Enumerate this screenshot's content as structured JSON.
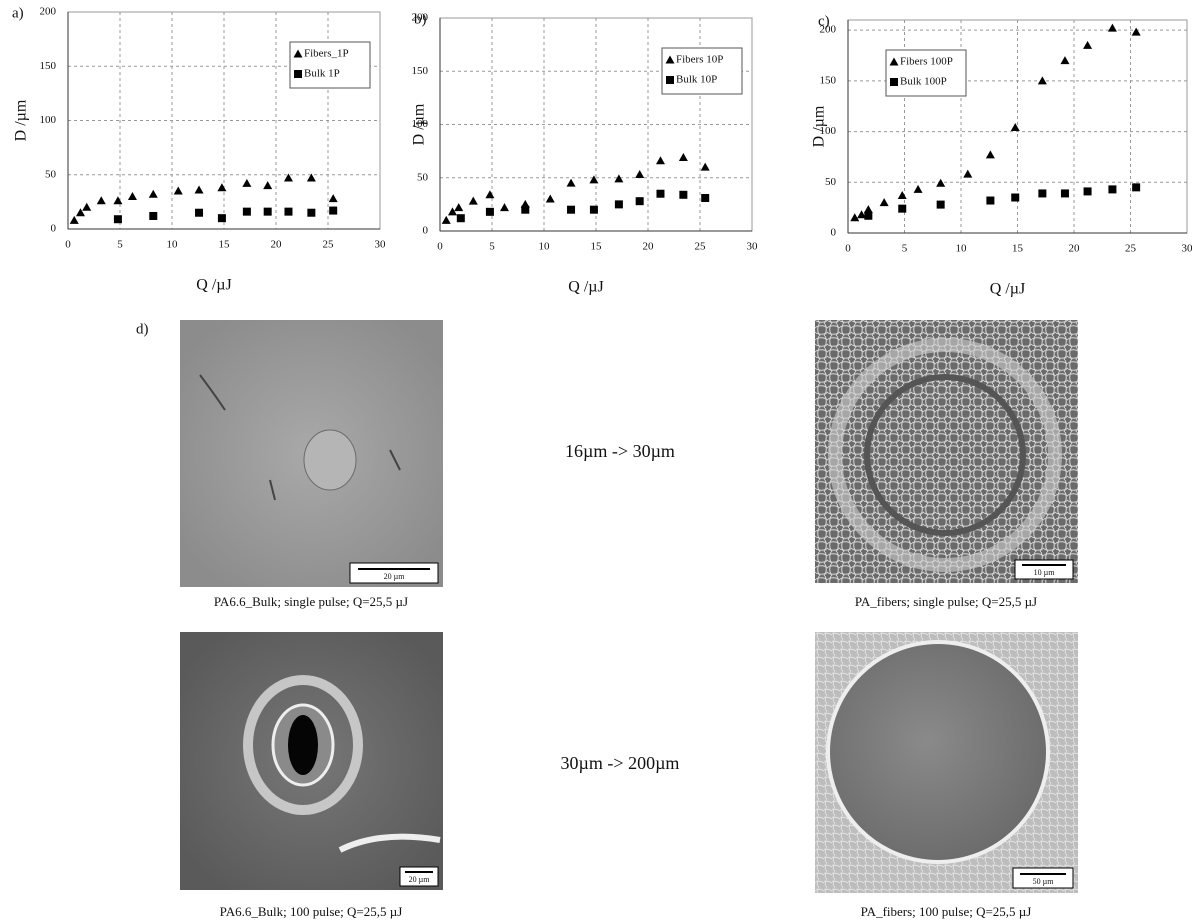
{
  "chart_data": [
    {
      "type": "scatter",
      "panel_label": "a)",
      "xlabel": "Q /µJ",
      "ylabel": "D /µm",
      "xlim": [
        0,
        30
      ],
      "xticks": [
        0,
        5,
        10,
        15,
        20,
        25,
        30
      ],
      "ylim": [
        0,
        200
      ],
      "yticks": [
        0,
        50,
        100,
        150,
        200
      ],
      "grid": true,
      "legend": "upper right",
      "series": [
        {
          "name": "Fibers_1P",
          "marker": "triangle",
          "color": "#000000",
          "x": [
            0.6,
            1.2,
            1.8,
            3.2,
            4.8,
            6.2,
            8.2,
            10.6,
            12.6,
            14.8,
            17.2,
            19.2,
            21.2,
            23.4,
            25.5
          ],
          "values": [
            8,
            15,
            20,
            26,
            26,
            30,
            32,
            35,
            36,
            38,
            42,
            40,
            47,
            47,
            28
          ]
        },
        {
          "name": "Bulk 1P",
          "marker": "square",
          "color": "#000000",
          "x": [
            4.8,
            8.2,
            12.6,
            14.8,
            17.2,
            19.2,
            21.2,
            23.4,
            25.5
          ],
          "values": [
            9,
            12,
            15,
            10,
            16,
            16,
            16,
            15,
            17
          ]
        }
      ]
    },
    {
      "type": "scatter",
      "panel_label": "b)",
      "xlabel": "Q /µJ",
      "ylabel": "D /µm",
      "xlim": [
        0,
        30
      ],
      "xticks": [
        0,
        5,
        10,
        15,
        20,
        25,
        30
      ],
      "ylim": [
        0,
        200
      ],
      "yticks": [
        0,
        50,
        100,
        150,
        200
      ],
      "grid": true,
      "legend": "upper right",
      "series": [
        {
          "name": "Fibers 10P",
          "marker": "triangle",
          "color": "#000000",
          "x": [
            0.6,
            1.2,
            1.8,
            3.2,
            4.8,
            6.2,
            8.2,
            10.6,
            12.6,
            14.8,
            17.2,
            19.2,
            21.2,
            23.4,
            25.5
          ],
          "values": [
            10,
            18,
            22,
            28,
            34,
            22,
            25,
            30,
            45,
            48,
            49,
            53,
            66,
            69,
            60
          ]
        },
        {
          "name": "Bulk 10P",
          "marker": "square",
          "color": "#000000",
          "x": [
            2,
            4.8,
            8.2,
            12.6,
            14.8,
            17.2,
            19.2,
            21.2,
            23.4,
            25.5
          ],
          "values": [
            12,
            18,
            20,
            20,
            20,
            25,
            28,
            35,
            34,
            31
          ]
        }
      ]
    },
    {
      "type": "scatter",
      "panel_label": "c)",
      "xlabel": "Q /µJ",
      "ylabel": "D /µm",
      "xlim": [
        0,
        30
      ],
      "xticks": [
        0,
        5,
        10,
        15,
        20,
        25,
        30
      ],
      "ylim": [
        0,
        210
      ],
      "yticks": [
        0,
        50,
        100,
        150,
        200
      ],
      "grid": true,
      "legend": "upper left",
      "series": [
        {
          "name": "Fibers 100P",
          "marker": "triangle",
          "color": "#000000",
          "x": [
            0.6,
            1.2,
            1.8,
            3.2,
            4.8,
            6.2,
            8.2,
            10.6,
            12.6,
            14.8,
            17.2,
            19.2,
            21.2,
            23.4,
            25.5
          ],
          "values": [
            15,
            18,
            23,
            30,
            37,
            43,
            49,
            58,
            77,
            104,
            150,
            170,
            185,
            202,
            198
          ]
        },
        {
          "name": "Bulk 100P",
          "marker": "square",
          "color": "#000000",
          "x": [
            1.8,
            4.8,
            8.2,
            12.6,
            14.8,
            17.2,
            19.2,
            21.2,
            23.4,
            25.5
          ],
          "values": [
            17,
            24,
            28,
            32,
            35,
            39,
            39,
            41,
            43,
            45
          ]
        }
      ]
    }
  ],
  "panel_d": {
    "label": "d)",
    "comparisons": [
      "16µm -> 30µm",
      "30µm -> 200µm"
    ],
    "images": [
      {
        "caption": "PA6.6_Bulk; single pulse; Q=25,5 µJ",
        "scale_bar": "20 µm"
      },
      {
        "caption": "PA_fibers; single pulse; Q=25,5 µJ",
        "scale_bar": "10 µm"
      },
      {
        "caption": "PA6.6_Bulk; 100 pulse; Q=25,5 µJ",
        "scale_bar": "20 µm"
      },
      {
        "caption": "PA_fibers; 100 pulse; Q=25,5 µJ",
        "scale_bar": "50 µm"
      }
    ]
  }
}
